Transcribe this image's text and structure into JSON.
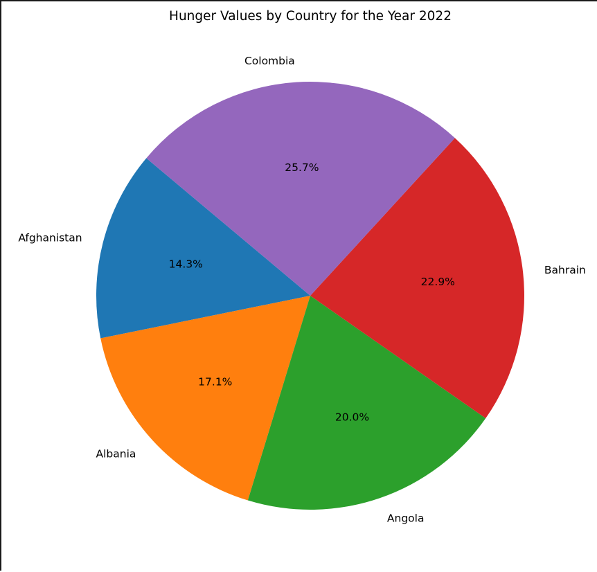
{
  "chart_data": {
    "type": "pie",
    "title": "Hunger Values by Country for the Year 2022",
    "start_angle_deg": 140,
    "direction": "counterclockwise",
    "slices": [
      {
        "label": "Afghanistan",
        "value": 14.3,
        "pct_label": "14.3%",
        "color": "#1f77b4"
      },
      {
        "label": "Albania",
        "value": 17.1,
        "pct_label": "17.1%",
        "color": "#ff7f0e"
      },
      {
        "label": "Angola",
        "value": 20.0,
        "pct_label": "20.0%",
        "color": "#2ca02c"
      },
      {
        "label": "Bahrain",
        "value": 22.9,
        "pct_label": "22.9%",
        "color": "#d62728"
      },
      {
        "label": "Colombia",
        "value": 25.7,
        "pct_label": "25.7%",
        "color": "#9467bd"
      }
    ]
  }
}
